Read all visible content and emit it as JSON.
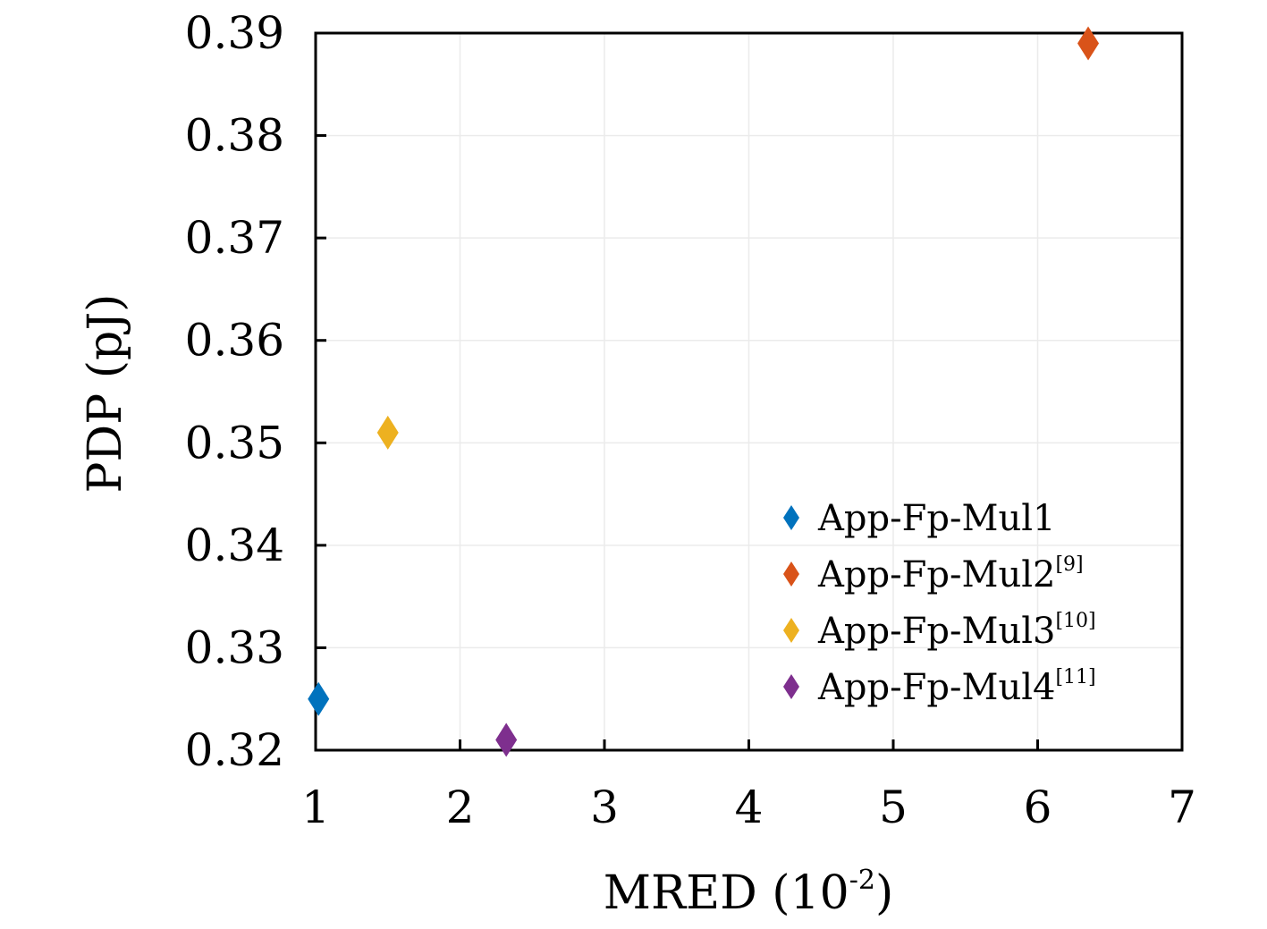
{
  "chart_data": {
    "type": "scatter",
    "xlabel": "MRED (10",
    "xlabel_exp": "-2",
    "xlabel_close": ")",
    "ylabel": "PDP (pJ)",
    "xlim": [
      1,
      7
    ],
    "ylim": [
      0.32,
      0.39
    ],
    "x_ticks": [
      "1",
      "2",
      "3",
      "4",
      "5",
      "6",
      "7"
    ],
    "y_ticks": [
      "0.32",
      "0.33",
      "0.34",
      "0.35",
      "0.36",
      "0.37",
      "0.38",
      "0.39"
    ],
    "grid": true,
    "legend_position": "bottom-right",
    "marker": "diamond",
    "series": [
      {
        "name": "App-Fp-Mul1",
        "ref": "",
        "color": "#0072BD",
        "x": [
          1.02
        ],
        "y": [
          0.325
        ]
      },
      {
        "name": "App-Fp-Mul2",
        "ref": "[9]",
        "color": "#D95319",
        "x": [
          6.35
        ],
        "y": [
          0.389
        ]
      },
      {
        "name": "App-Fp-Mul3",
        "ref": "[10]",
        "color": "#EDB120",
        "x": [
          1.5
        ],
        "y": [
          0.351
        ]
      },
      {
        "name": "App-Fp-Mul4",
        "ref": "[11]",
        "color": "#7E2F8E",
        "x": [
          2.32
        ],
        "y": [
          0.321
        ]
      }
    ]
  }
}
